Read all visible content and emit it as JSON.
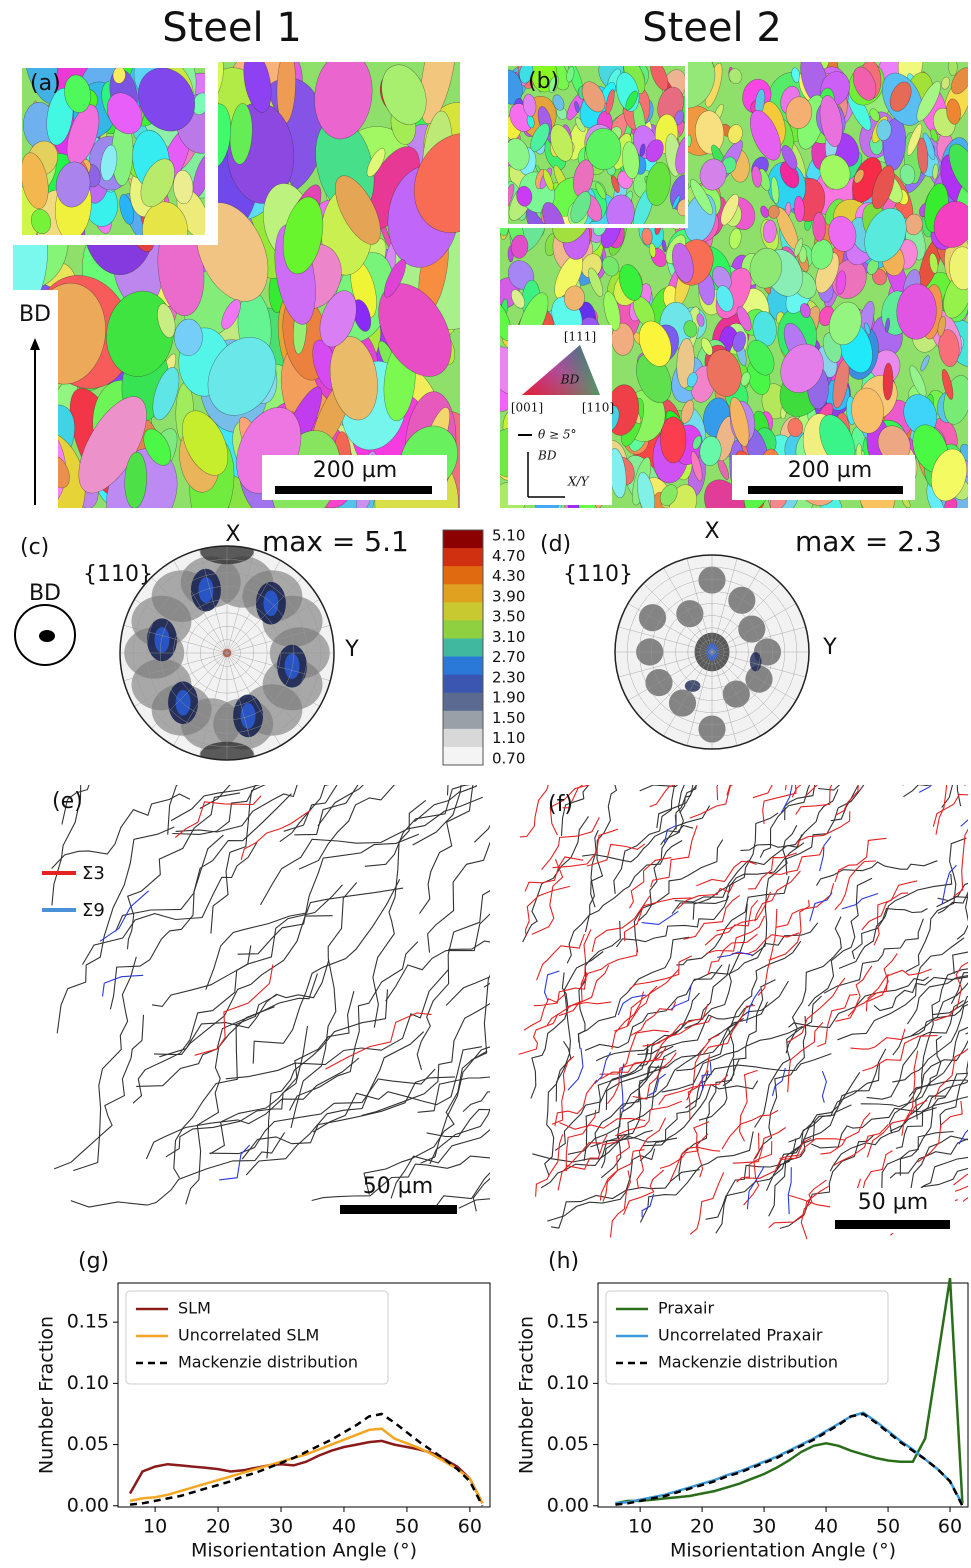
{
  "header": {
    "titles": [
      "Steel 1",
      "Steel 2"
    ]
  },
  "panels": {
    "a": {
      "label": "(a)",
      "direction": "BD",
      "scale_bar": "200 µm"
    },
    "b": {
      "label": "(b)",
      "scale_bar": "200 µm",
      "ipf_legend": {
        "top": "[111]",
        "left": "[001]",
        "right": "[110]",
        "center": "BD",
        "boundary": "θ ≥ 5°",
        "vertical": "BD",
        "horizontal": "X/Y"
      }
    },
    "c": {
      "label": "(c)",
      "sample_direction": "BD",
      "plane": "{110}",
      "x_axis": "X",
      "y_axis": "Y",
      "max": "max = 5.1"
    },
    "colorbar": {
      "labels": [
        "5.10",
        "4.70",
        "4.30",
        "3.90",
        "3.50",
        "3.10",
        "2.70",
        "2.30",
        "1.90",
        "1.50",
        "1.10",
        "0.70"
      ]
    },
    "d": {
      "label": "(d)",
      "plane": "{110}",
      "x_axis": "X",
      "y_axis": "Y",
      "max": "max = 2.3"
    },
    "e": {
      "label": "(e)",
      "legend": [
        "Σ3",
        "Σ9"
      ],
      "scale_bar": "50 µm"
    },
    "f": {
      "label": "(f)",
      "scale_bar": "50 µm"
    }
  },
  "chart_data": [
    {
      "type": "line",
      "label": "(g)",
      "xlabel": "Misorientation Angle (°)",
      "ylabel": "Number Fraction",
      "x": [
        6,
        8,
        10,
        12,
        14,
        16,
        18,
        20,
        22,
        24,
        26,
        28,
        30,
        32,
        34,
        36,
        38,
        40,
        42,
        44,
        46,
        48,
        50,
        52,
        54,
        56,
        58,
        60,
        62
      ],
      "series": [
        {
          "name": "SLM",
          "color": "#8b1a1a",
          "linestyle": "solid",
          "values": [
            0.01,
            0.028,
            0.032,
            0.034,
            0.033,
            0.032,
            0.031,
            0.03,
            0.028,
            0.029,
            0.031,
            0.033,
            0.034,
            0.033,
            0.036,
            0.041,
            0.045,
            0.048,
            0.05,
            0.052,
            0.053,
            0.05,
            0.048,
            0.046,
            0.043,
            0.038,
            0.032,
            0.022,
            0.002
          ]
        },
        {
          "name": "Uncorrelated SLM",
          "color": "#f5a623",
          "linestyle": "solid",
          "values": [
            0.004,
            0.006,
            0.007,
            0.009,
            0.012,
            0.015,
            0.018,
            0.021,
            0.024,
            0.027,
            0.03,
            0.033,
            0.036,
            0.039,
            0.042,
            0.046,
            0.05,
            0.054,
            0.058,
            0.062,
            0.063,
            0.055,
            0.051,
            0.047,
            0.042,
            0.036,
            0.03,
            0.022,
            0.002
          ]
        },
        {
          "name": "Mackenzie distribution",
          "color": "#000000",
          "linestyle": "dashed",
          "values": [
            0.001,
            0.002,
            0.004,
            0.006,
            0.008,
            0.011,
            0.014,
            0.017,
            0.02,
            0.024,
            0.027,
            0.031,
            0.035,
            0.039,
            0.044,
            0.049,
            0.054,
            0.06,
            0.066,
            0.073,
            0.075,
            0.068,
            0.06,
            0.052,
            0.045,
            0.038,
            0.03,
            0.02,
            0.0
          ]
        }
      ],
      "xlim": [
        4.1,
        63.2
      ],
      "ylim": [
        -0.001,
        0.182
      ],
      "xticks": [
        10,
        20,
        30,
        40,
        50,
        60
      ],
      "yticks": [
        {
          "value": 0,
          "label": "0.00"
        },
        {
          "value": 0.05,
          "label": "0.05"
        },
        {
          "value": 0.1,
          "label": "0.10"
        },
        {
          "value": 0.15,
          "label": "0.15"
        }
      ],
      "legend": "upper left"
    },
    {
      "type": "line",
      "label": "(h)",
      "xlabel": "Misorientation Angle (°)",
      "ylabel": "Number Fraction",
      "x": [
        6,
        8,
        10,
        12,
        14,
        16,
        18,
        20,
        22,
        24,
        26,
        28,
        30,
        32,
        34,
        36,
        38,
        40,
        42,
        44,
        46,
        48,
        50,
        52,
        54,
        56,
        58,
        60,
        62
      ],
      "series": [
        {
          "name": "Praxair",
          "color": "#2a6e1a",
          "linestyle": "solid",
          "values": [
            0.002,
            0.004,
            0.004,
            0.005,
            0.006,
            0.007,
            0.008,
            0.01,
            0.012,
            0.015,
            0.018,
            0.022,
            0.026,
            0.031,
            0.037,
            0.044,
            0.049,
            0.051,
            0.049,
            0.045,
            0.042,
            0.039,
            0.037,
            0.036,
            0.036,
            0.055,
            0.12,
            0.186,
            0.002
          ]
        },
        {
          "name": "Uncorrelated Praxair",
          "color": "#3a9ad9",
          "linestyle": "solid",
          "values": [
            0.002,
            0.003,
            0.005,
            0.007,
            0.009,
            0.012,
            0.015,
            0.018,
            0.021,
            0.025,
            0.028,
            0.032,
            0.036,
            0.04,
            0.045,
            0.05,
            0.055,
            0.061,
            0.067,
            0.073,
            0.076,
            0.069,
            0.061,
            0.053,
            0.046,
            0.038,
            0.03,
            0.02,
            0.001
          ]
        },
        {
          "name": "Mackenzie distribution",
          "color": "#000000",
          "linestyle": "dashed",
          "values": [
            0.001,
            0.002,
            0.004,
            0.006,
            0.008,
            0.011,
            0.014,
            0.017,
            0.02,
            0.024,
            0.027,
            0.031,
            0.035,
            0.039,
            0.044,
            0.049,
            0.054,
            0.06,
            0.066,
            0.073,
            0.075,
            0.068,
            0.06,
            0.052,
            0.045,
            0.038,
            0.03,
            0.02,
            0.0
          ]
        }
      ],
      "xlim": [
        3.2,
        62.9
      ],
      "ylim": [
        -0.001,
        0.182
      ],
      "xticks": [
        10,
        20,
        30,
        40,
        50,
        60
      ],
      "yticks": [
        {
          "value": 0,
          "label": "0.00"
        },
        {
          "value": 0.05,
          "label": "0.05"
        },
        {
          "value": 0.1,
          "label": "0.10"
        },
        {
          "value": 0.15,
          "label": "0.15"
        }
      ],
      "legend": "upper left"
    }
  ]
}
